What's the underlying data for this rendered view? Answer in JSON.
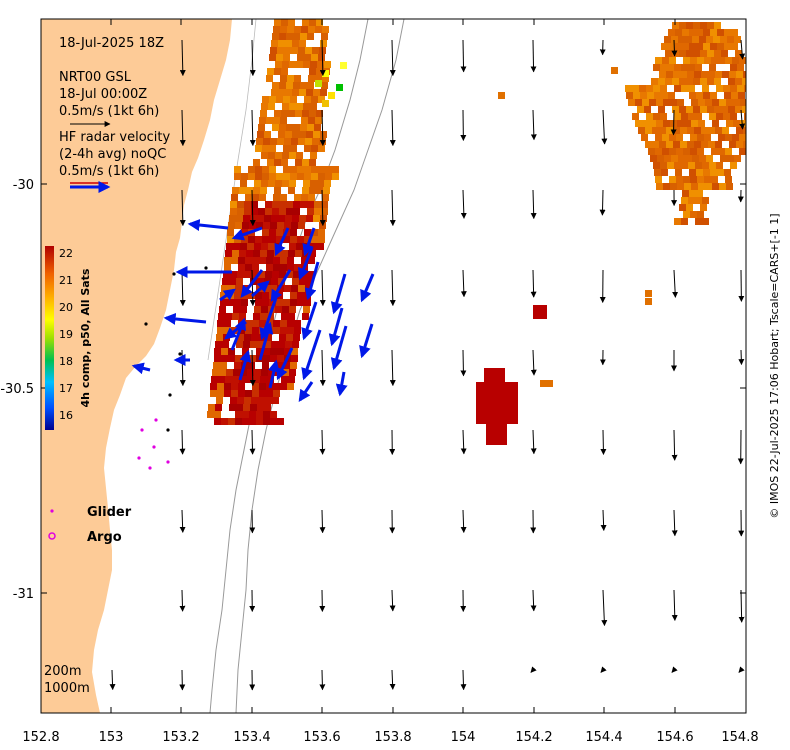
{
  "map": {
    "timestamp": "18-Jul-2025 18Z",
    "product_line1": "NRT00 GSL",
    "product_line2": "18-Jul 00:00Z",
    "product_scale": "0.5m/s (1kt 6h)",
    "radar_line1": "HF radar velocity",
    "radar_line2": "(2-4h avg) noQC",
    "radar_scale": "0.5m/s (1kt 6h)",
    "colorbar_title": "4h comp, p50, All Sats",
    "colorbar_ticks": [
      "22",
      "21",
      "20",
      "19",
      "18",
      "17",
      "16"
    ],
    "legend": {
      "glider": "Glider",
      "argo": "Argo"
    },
    "depth_labels": [
      "200m",
      "1000m"
    ],
    "credit": "© IMOS 22-Jul-2025 17:06 Hobart; Tscale=CARS+[-1 1]",
    "lon_ticks": [
      "152.8",
      "153",
      "153.2",
      "153.4",
      "153.6",
      "153.8",
      "154",
      "154.2",
      "154.4",
      "154.6",
      "154.8"
    ],
    "lat_ticks": [
      "-30",
      "-30.5",
      "-31"
    ],
    "colors": {
      "land": "#fdcb97",
      "radar_arrow": "#0018e8",
      "sst_hot": "#b80000",
      "sst_warm": "#e06800",
      "sst_mid": "#f0a000"
    },
    "layers": {
      "sst_cells": "icon-sst-grid",
      "model_arrows": "icon-current-arrow",
      "radar_arrows": "icon-radar-arrow",
      "glider_marker": "glider-icon",
      "argo_marker": "argo-icon"
    }
  }
}
